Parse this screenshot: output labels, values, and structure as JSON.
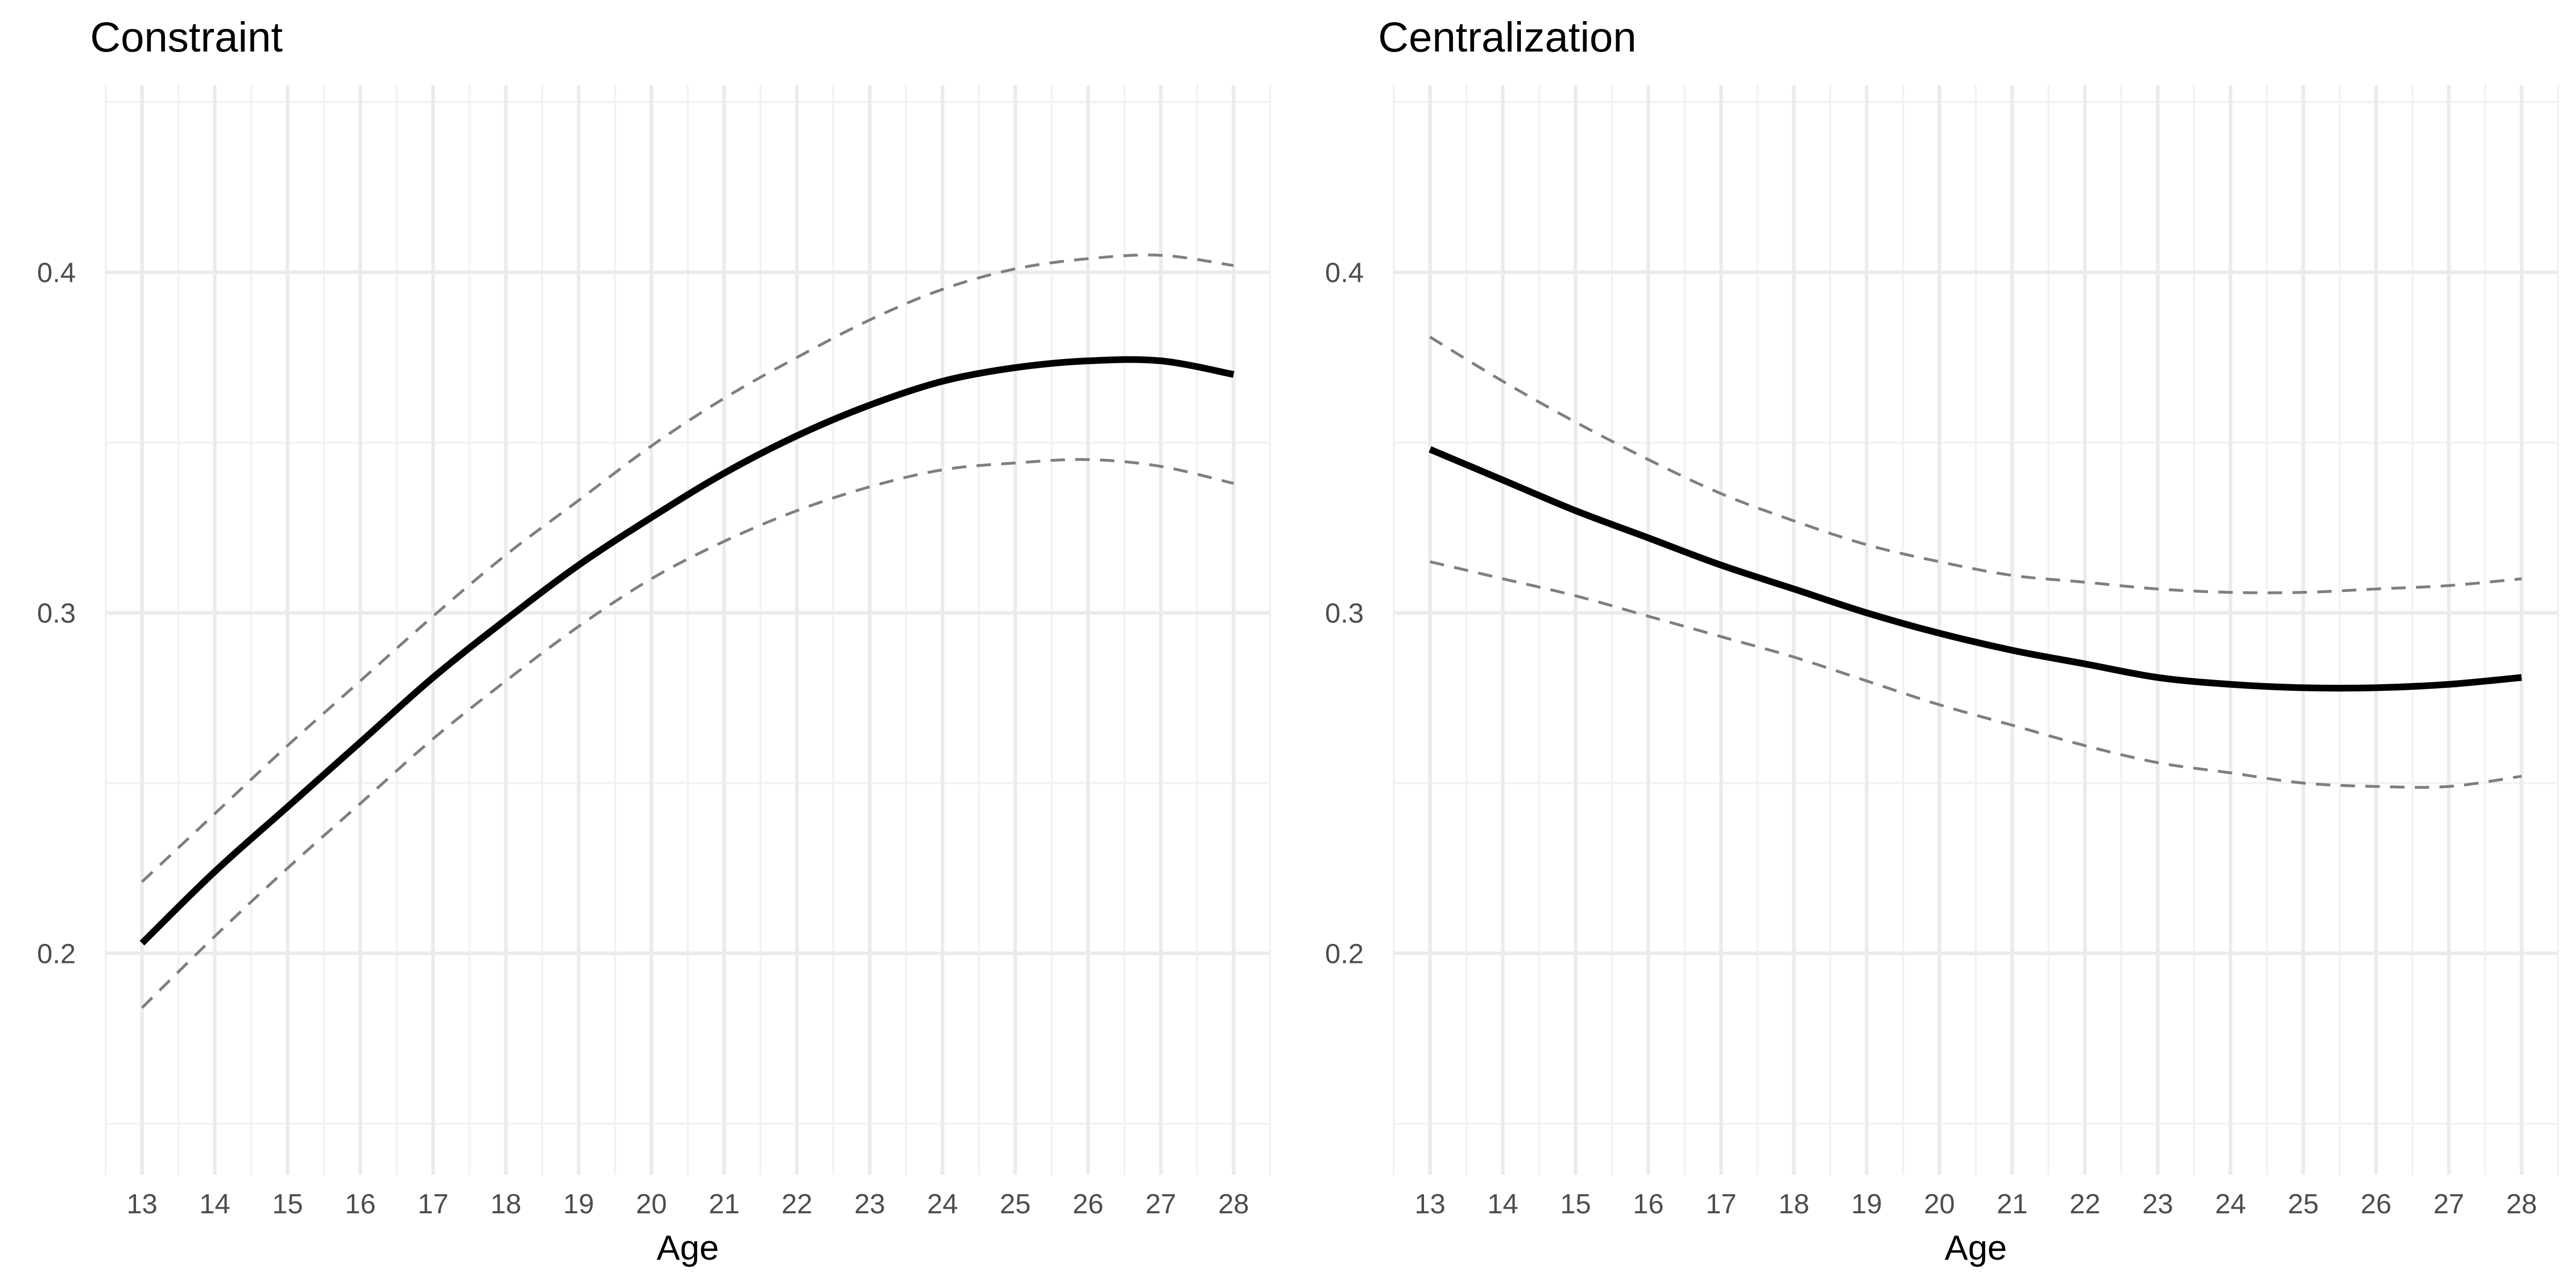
{
  "chart_data": [
    {
      "type": "line",
      "title": "Constraint",
      "xlabel": "Age",
      "ylabel": "",
      "xlim": [
        12.5,
        28.5
      ],
      "ylim": [
        0.135,
        0.455
      ],
      "xticks": [
        13,
        14,
        15,
        16,
        17,
        18,
        19,
        20,
        21,
        22,
        23,
        24,
        25,
        26,
        27,
        28
      ],
      "yticks": [
        0.2,
        0.3,
        0.4
      ],
      "ytick_labels": [
        "0.2",
        "0.3",
        "0.4"
      ],
      "grid": true,
      "legend": "none",
      "x": [
        13,
        14,
        15,
        16,
        17,
        18,
        19,
        20,
        21,
        22,
        23,
        24,
        25,
        26,
        27,
        28
      ],
      "series": [
        {
          "role": "estimate",
          "style": "solid",
          "color": "#000000",
          "values": [
            0.203,
            0.224,
            0.243,
            0.262,
            0.281,
            0.298,
            0.314,
            0.328,
            0.341,
            0.352,
            0.361,
            0.368,
            0.372,
            0.374,
            0.374,
            0.37
          ]
        },
        {
          "role": "upper",
          "style": "dashed",
          "color": "#7f7f7f",
          "values": [
            0.221,
            0.241,
            0.261,
            0.28,
            0.299,
            0.317,
            0.333,
            0.349,
            0.363,
            0.375,
            0.386,
            0.395,
            0.401,
            0.404,
            0.405,
            0.402
          ]
        },
        {
          "role": "lower",
          "style": "dashed",
          "color": "#7f7f7f",
          "values": [
            0.184,
            0.205,
            0.225,
            0.244,
            0.263,
            0.28,
            0.296,
            0.31,
            0.321,
            0.33,
            0.337,
            0.342,
            0.344,
            0.345,
            0.343,
            0.338
          ]
        }
      ]
    },
    {
      "type": "line",
      "title": "Centralization",
      "xlabel": "Age",
      "ylabel": "",
      "xlim": [
        12.5,
        28.5
      ],
      "ylim": [
        0.135,
        0.455
      ],
      "xticks": [
        13,
        14,
        15,
        16,
        17,
        18,
        19,
        20,
        21,
        22,
        23,
        24,
        25,
        26,
        27,
        28
      ],
      "yticks": [
        0.2,
        0.3,
        0.4
      ],
      "ytick_labels": [
        "0.2",
        "0.3",
        "0.4"
      ],
      "grid": true,
      "legend": "none",
      "x": [
        13,
        14,
        15,
        16,
        17,
        18,
        19,
        20,
        21,
        22,
        23,
        24,
        25,
        26,
        27,
        28
      ],
      "series": [
        {
          "role": "estimate",
          "style": "solid",
          "color": "#000000",
          "values": [
            0.348,
            0.339,
            0.33,
            0.322,
            0.314,
            0.307,
            0.3,
            0.294,
            0.289,
            0.285,
            0.281,
            0.279,
            0.278,
            0.278,
            0.279,
            0.281
          ]
        },
        {
          "role": "upper",
          "style": "dashed",
          "color": "#7f7f7f",
          "values": [
            0.381,
            0.368,
            0.356,
            0.345,
            0.335,
            0.327,
            0.32,
            0.315,
            0.311,
            0.309,
            0.307,
            0.306,
            0.306,
            0.307,
            0.308,
            0.31
          ]
        },
        {
          "role": "lower",
          "style": "dashed",
          "color": "#7f7f7f",
          "values": [
            0.315,
            0.31,
            0.305,
            0.299,
            0.293,
            0.287,
            0.28,
            0.273,
            0.267,
            0.261,
            0.256,
            0.253,
            0.25,
            0.249,
            0.249,
            0.252
          ]
        }
      ]
    }
  ]
}
